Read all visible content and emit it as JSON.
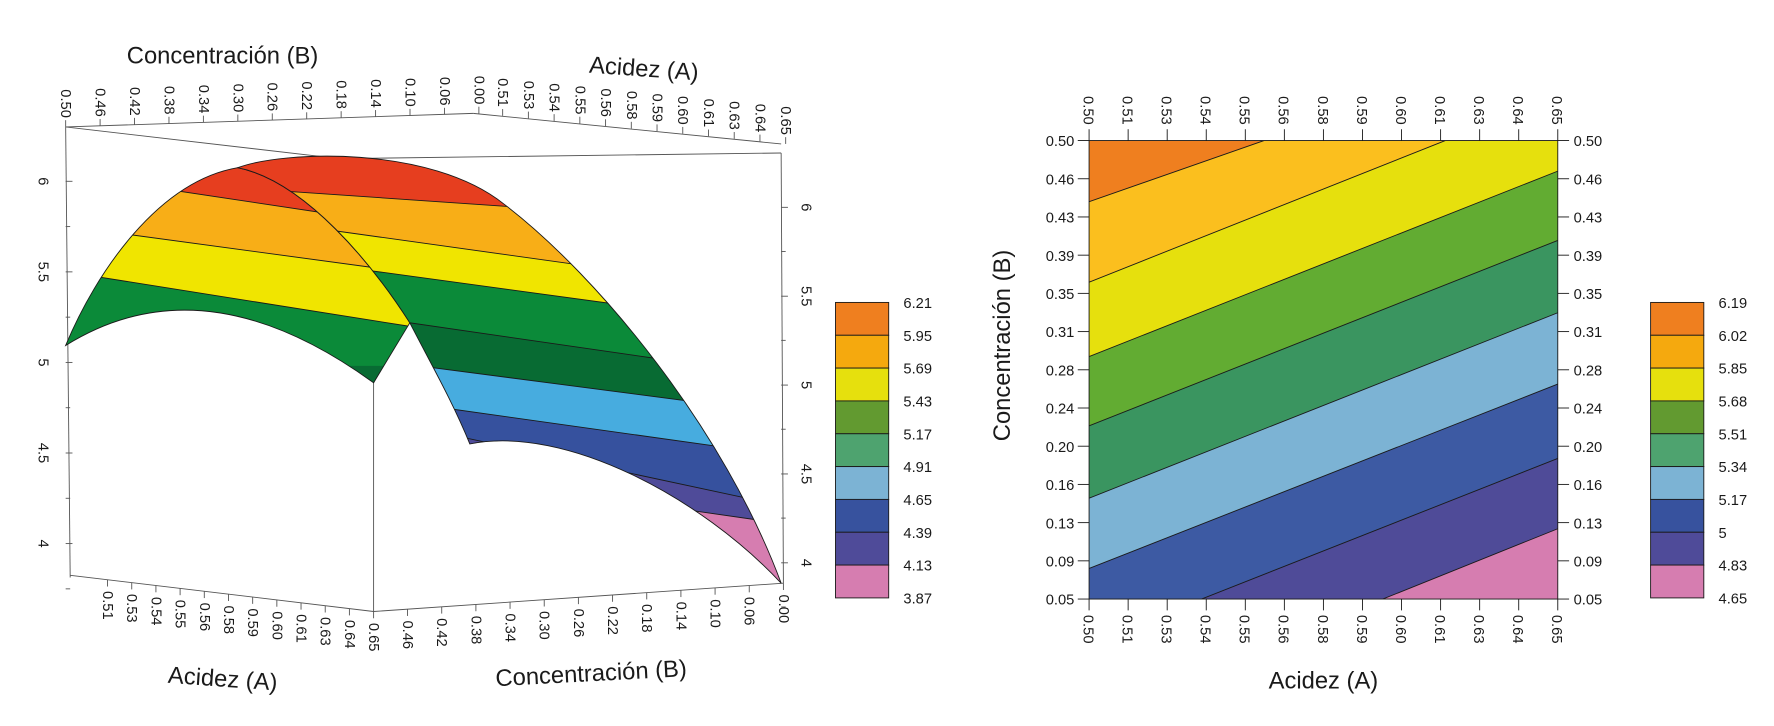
{
  "chart_data": [
    {
      "type": "surface",
      "b_axis_title": "Concentración (B)",
      "a_axis_title": "Acidez (A)",
      "top_b_ticks": [
        "0.50",
        "0.46",
        "0.42",
        "0.38",
        "0.34",
        "0.30",
        "0.26",
        "0.22",
        "0.18",
        "0.14",
        "0.10",
        "0.06",
        "0.00"
      ],
      "top_a_ticks": [
        "0.51",
        "0.53",
        "0.54",
        "0.55",
        "0.56",
        "0.58",
        "0.59",
        "0.60",
        "0.61",
        "0.63",
        "0.64",
        "0.65"
      ],
      "bottom_a_ticks": [
        "0.51",
        "0.53",
        "0.54",
        "0.55",
        "0.56",
        "0.58",
        "0.59",
        "0.60",
        "0.61",
        "0.63",
        "0.64",
        "0.65"
      ],
      "bottom_b_ticks": [
        "0.46",
        "0.42",
        "0.38",
        "0.34",
        "0.30",
        "0.26",
        "0.22",
        "0.18",
        "0.14",
        "0.10",
        "0.06",
        "0.00"
      ],
      "z_ticks": [
        "6",
        "5.5",
        "5",
        "4.5",
        "4"
      ],
      "zlim": [
        3.87,
        6.21
      ],
      "legend_levels": [
        "6.21",
        "5.95",
        "5.69",
        "5.43",
        "5.17",
        "4.91",
        "4.65",
        "4.39",
        "4.13",
        "3.87"
      ],
      "legend_colors": [
        "#ef7f1f",
        "#f5a90e",
        "#e6e00d",
        "#629a30",
        "#4ea36f",
        "#7cb3d4",
        "#37529e",
        "#4f4b99",
        "#d67db0"
      ],
      "surface_colors": [
        "#e63e1f",
        "#f8ae17",
        "#f0e500",
        "#0b8a39",
        "#086b33",
        "#47acdf",
        "#36519e",
        "#4f4b99",
        "#d67db0"
      ]
    },
    {
      "type": "contour",
      "xlabel": "Acidez (A)",
      "ylabel": "Concentración (B)",
      "xlim": [
        0.5,
        0.65
      ],
      "ylim": [
        0.05,
        0.5
      ],
      "x_ticks": [
        "0.50",
        "0.51",
        "0.53",
        "0.54",
        "0.55",
        "0.56",
        "0.58",
        "0.59",
        "0.60",
        "0.61",
        "0.63",
        "0.64",
        "0.65"
      ],
      "y_ticks": [
        "0.05",
        "0.09",
        "0.13",
        "0.16",
        "0.20",
        "0.24",
        "0.28",
        "0.31",
        "0.35",
        "0.39",
        "0.43",
        "0.46",
        "0.50"
      ],
      "legend_levels": [
        "6.19",
        "6.02",
        "5.85",
        "5.68",
        "5.51",
        "5.34",
        "5.17",
        "5",
        "4.83",
        "4.65"
      ],
      "legend_colors": [
        "#ef7f1f",
        "#f5a90e",
        "#e6e00d",
        "#629a30",
        "#4ea36f",
        "#7cb3d4",
        "#37529e",
        "#4f4b99",
        "#d67db0"
      ],
      "region_colors": [
        "#ef7f1f",
        "#fbbf1e",
        "#e6e00d",
        "#62ac32",
        "#3a9560",
        "#7cb3d4",
        "#3d5aa3",
        "#4f4b98",
        "#d67db0"
      ],
      "contour_lines": [
        {
          "level": 6.02,
          "points": [
            [
              0.5,
              0.44
            ],
            [
              0.556,
              0.5
            ]
          ]
        },
        {
          "level": 5.85,
          "points": [
            [
              0.5,
              0.361
            ],
            [
              0.614,
              0.5
            ]
          ]
        },
        {
          "level": 5.68,
          "points": [
            [
              0.5,
              0.288
            ],
            [
              0.65,
              0.47
            ]
          ]
        },
        {
          "level": 5.51,
          "points": [
            [
              0.5,
              0.22
            ],
            [
              0.65,
              0.402
            ]
          ]
        },
        {
          "level": 5.34,
          "points": [
            [
              0.5,
              0.149
            ],
            [
              0.65,
              0.331
            ]
          ]
        },
        {
          "level": 5.17,
          "points": [
            [
              0.5,
              0.08
            ],
            [
              0.65,
              0.261
            ]
          ]
        },
        {
          "level": 5.0,
          "points": [
            [
              0.536,
              0.05
            ],
            [
              0.65,
              0.188
            ]
          ]
        },
        {
          "level": 4.83,
          "points": [
            [
              0.594,
              0.05
            ],
            [
              0.65,
              0.119
            ]
          ]
        }
      ]
    }
  ]
}
